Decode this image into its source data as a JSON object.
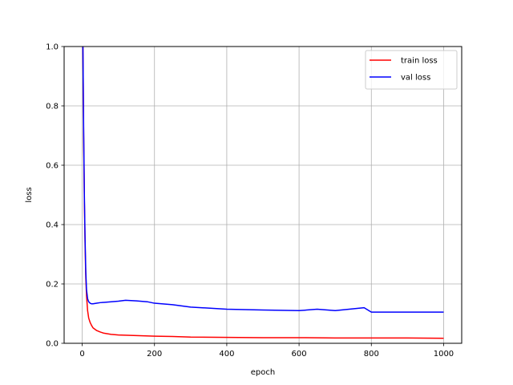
{
  "chart_data": {
    "type": "line",
    "title": "",
    "xlabel": "epoch",
    "ylabel": "loss",
    "xlim": [
      -50,
      1050
    ],
    "ylim": [
      0,
      1
    ],
    "xticks": [
      0,
      200,
      400,
      600,
      800,
      1000
    ],
    "yticks": [
      0.0,
      0.2,
      0.4,
      0.6,
      0.8,
      1.0
    ],
    "xtick_labels": [
      "0",
      "200",
      "400",
      "600",
      "800",
      "1000"
    ],
    "ytick_labels": [
      "0.0",
      "0.2",
      "0.4",
      "0.6",
      "0.8",
      "1.0"
    ],
    "grid": true,
    "legend_position": "top-right",
    "series": [
      {
        "name": "train loss",
        "color": "#ff0000",
        "x": [
          0,
          2,
          4,
          6,
          8,
          10,
          12,
          15,
          18,
          22,
          26,
          30,
          40,
          50,
          60,
          80,
          100,
          150,
          200,
          250,
          300,
          400,
          500,
          600,
          700,
          800,
          900,
          1000
        ],
        "y": [
          1.5,
          1.0,
          0.7,
          0.48,
          0.33,
          0.22,
          0.16,
          0.11,
          0.085,
          0.07,
          0.06,
          0.052,
          0.043,
          0.038,
          0.034,
          0.03,
          0.028,
          0.026,
          0.024,
          0.023,
          0.021,
          0.02,
          0.019,
          0.019,
          0.018,
          0.018,
          0.018,
          0.017
        ]
      },
      {
        "name": "val loss",
        "color": "#0000ff",
        "x": [
          0,
          2,
          4,
          6,
          8,
          10,
          12,
          15,
          18,
          22,
          26,
          30,
          40,
          50,
          60,
          80,
          100,
          120,
          150,
          180,
          200,
          250,
          300,
          400,
          500,
          600,
          650,
          700,
          780,
          800,
          900,
          1000
        ],
        "y": [
          1.5,
          1.0,
          0.72,
          0.5,
          0.35,
          0.24,
          0.18,
          0.15,
          0.14,
          0.135,
          0.133,
          0.133,
          0.135,
          0.137,
          0.138,
          0.14,
          0.142,
          0.145,
          0.143,
          0.14,
          0.135,
          0.13,
          0.122,
          0.115,
          0.112,
          0.11,
          0.115,
          0.11,
          0.12,
          0.105,
          0.105,
          0.105
        ]
      }
    ]
  }
}
